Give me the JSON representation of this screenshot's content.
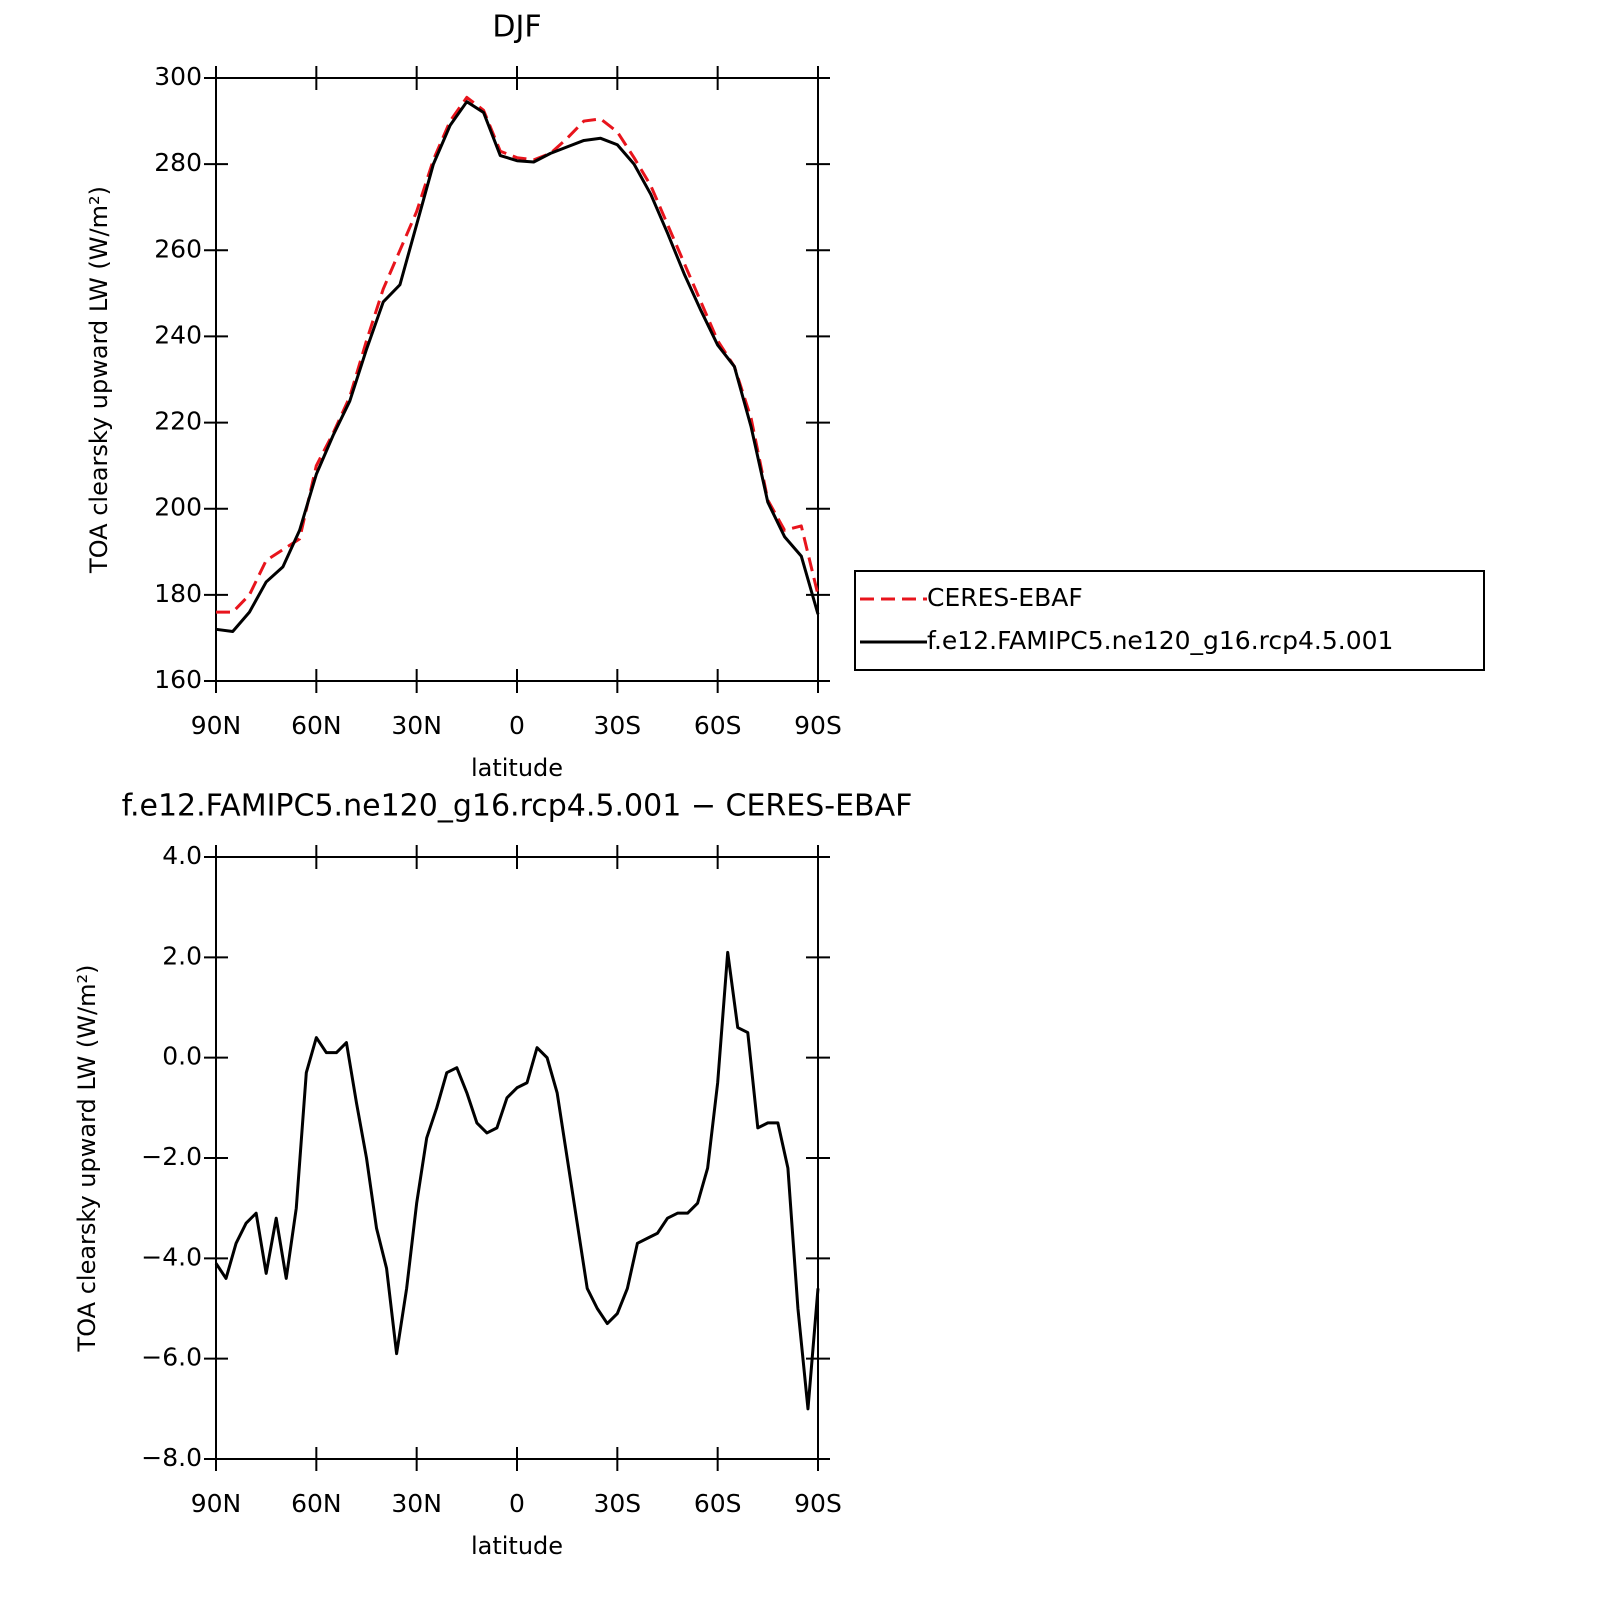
{
  "chart_data": [
    {
      "type": "line",
      "title": "DJF",
      "xlabel": "latitude",
      "ylabel": "TOA clearsky upward LW (W/m²)",
      "x": [
        90,
        85,
        80,
        75,
        70,
        65,
        60,
        55,
        50,
        45,
        40,
        35,
        30,
        25,
        20,
        15,
        10,
        5,
        0,
        -5,
        -10,
        -15,
        -20,
        -25,
        -30,
        -35,
        -40,
        -45,
        -50,
        -55,
        -60,
        -65,
        -70,
        -75,
        -80,
        -85,
        -90
      ],
      "series": [
        {
          "name": "CERES-EBAF",
          "color": "#e8141c",
          "dashed": true,
          "values": [
            176,
            176,
            180,
            188,
            190.5,
            193,
            210,
            217.5,
            226,
            239,
            251,
            260,
            269,
            281,
            290,
            295.5,
            292.5,
            283,
            281.5,
            281,
            282.5,
            286,
            290,
            290.5,
            287.5,
            281.5,
            275,
            266,
            257,
            248,
            239,
            233,
            221,
            202,
            195,
            196,
            180
          ]
        },
        {
          "name": "f.e12.FAMIPC5.ne120_g16.rcp4.5.001",
          "color": "#000000",
          "dashed": false,
          "values": [
            172,
            171.5,
            176,
            183,
            186.5,
            195,
            208,
            217,
            225,
            237,
            248,
            252,
            266,
            280,
            289,
            294.5,
            292,
            282,
            280.8,
            280.5,
            282.5,
            284,
            285.5,
            286,
            284.5,
            280,
            273,
            264,
            254.5,
            246,
            238,
            233,
            219,
            201.5,
            193.5,
            189,
            175.5
          ]
        }
      ],
      "xlim": [
        90,
        -90
      ],
      "xticks": [
        {
          "value": 90,
          "label": "90N"
        },
        {
          "value": 60,
          "label": "60N"
        },
        {
          "value": 30,
          "label": "30N"
        },
        0,
        {
          "value": -30,
          "label": "30S"
        },
        {
          "value": -60,
          "label": "60S"
        },
        {
          "value": -90,
          "label": "90S"
        }
      ],
      "ylim": [
        160,
        300
      ],
      "yticks": [
        160,
        180,
        200,
        220,
        240,
        260,
        280,
        300
      ],
      "legend": "right"
    },
    {
      "type": "line",
      "title": "f.e12.FAMIPC5.ne120_g16.rcp4.5.001 − CERES-EBAF",
      "xlabel": "latitude",
      "ylabel": "TOA clearsky upward LW (W/m²)",
      "x": [
        90,
        87,
        84,
        81,
        78,
        75,
        72,
        69,
        66,
        63,
        60,
        57,
        54,
        51,
        48,
        45,
        42,
        39,
        36,
        33,
        30,
        27,
        24,
        21,
        18,
        15,
        12,
        9,
        6,
        3,
        0,
        -3,
        -6,
        -9,
        -12,
        -15,
        -18,
        -21,
        -24,
        -27,
        -30,
        -33,
        -36,
        -39,
        -42,
        -45,
        -48,
        -51,
        -54,
        -57,
        -60,
        -63,
        -66,
        -69,
        -72,
        -75,
        -78,
        -81,
        -84,
        -87,
        -90
      ],
      "color": "#000000",
      "values": [
        -4.1,
        -4.4,
        -3.7,
        -3.3,
        -3.1,
        -4.3,
        -3.2,
        -4.4,
        -3.0,
        -0.3,
        0.4,
        0.1,
        0.1,
        0.3,
        -0.9,
        -2.0,
        -3.4,
        -4.2,
        -5.9,
        -4.6,
        -2.9,
        -1.6,
        -1.0,
        -0.3,
        -0.2,
        -0.7,
        -1.3,
        -1.5,
        -1.4,
        -0.8,
        -0.6,
        -0.5,
        0.2,
        0.0,
        -0.7,
        -2.0,
        -3.3,
        -4.6,
        -5.0,
        -5.3,
        -5.1,
        -4.6,
        -3.7,
        -3.6,
        -3.5,
        -3.2,
        -3.1,
        -3.1,
        -2.9,
        -2.2,
        -0.5,
        2.1,
        0.6,
        0.5,
        -1.4,
        -1.3,
        -1.3,
        -2.2,
        -5.0,
        -7.0,
        -4.6
      ],
      "xlim": [
        90,
        -90
      ],
      "xticks": [
        {
          "value": 90,
          "label": "90N"
        },
        {
          "value": 60,
          "label": "60N"
        },
        {
          "value": 30,
          "label": "30N"
        },
        0,
        {
          "value": -30,
          "label": "30S"
        },
        {
          "value": -60,
          "label": "60S"
        },
        {
          "value": -90,
          "label": "90S"
        }
      ],
      "ylim": [
        -8,
        4
      ],
      "yticks": [
        {
          "value": -8,
          "label": "−8.0"
        },
        {
          "value": -6,
          "label": "−6.0"
        },
        {
          "value": -4,
          "label": "−4.0"
        },
        {
          "value": -2,
          "label": "−2.0"
        },
        {
          "value": 0,
          "label": "0.0"
        },
        {
          "value": 2,
          "label": "2.0"
        },
        {
          "value": 4,
          "label": "4.0"
        }
      ]
    }
  ]
}
